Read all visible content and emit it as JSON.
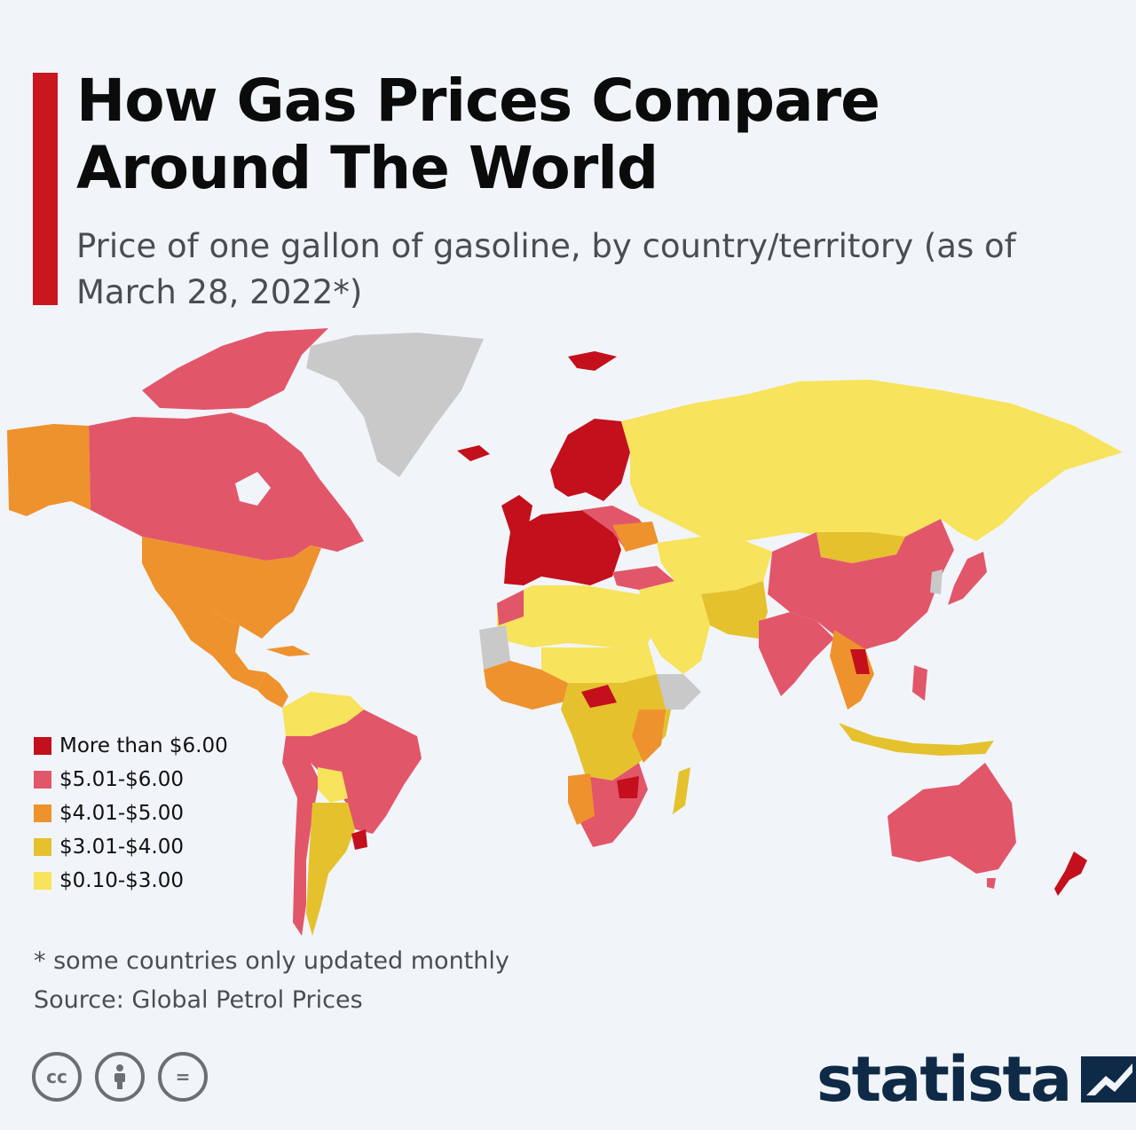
{
  "header": {
    "title": "How Gas Prices Compare Around The World",
    "subtitle": "Price of one gallon of gasoline, by country/territory (as of March 28, 2022*)"
  },
  "colors": {
    "accent_bar": "#c8171e",
    "no_data": "#c9c9c9",
    "background": "#f1f5f9"
  },
  "legend": {
    "items": [
      {
        "label": "More than $6.00",
        "color": "#c40f1c"
      },
      {
        "label": "$5.01-$6.00",
        "color": "#e2566a"
      },
      {
        "label": "$4.01-$5.00",
        "color": "#ee922d"
      },
      {
        "label": "$3.01-$4.00",
        "color": "#e5c12e"
      },
      {
        "label": "$0.10-$3.00",
        "color": "#f7e35c"
      }
    ]
  },
  "map_regions": [
    {
      "region": "Canada",
      "category": "$5.01-$6.00"
    },
    {
      "region": "USA",
      "category": "$4.01-$5.00"
    },
    {
      "region": "Alaska",
      "category": "$4.01-$5.00"
    },
    {
      "region": "Mexico",
      "category": "$4.01-$5.00"
    },
    {
      "region": "Greenland",
      "category": "no data"
    },
    {
      "region": "Brazil",
      "category": "$5.01-$6.00"
    },
    {
      "region": "Argentina",
      "category": "$3.01-$4.00"
    },
    {
      "region": "Uruguay",
      "category": "More than $6.00"
    },
    {
      "region": "Venezuela",
      "category": "$0.10-$3.00"
    },
    {
      "region": "Western Europe",
      "category": "More than $6.00"
    },
    {
      "region": "Iceland",
      "category": "More than $6.00"
    },
    {
      "region": "Scandinavia",
      "category": "More than $6.00"
    },
    {
      "region": "Russia",
      "category": "$0.10-$3.00"
    },
    {
      "region": "China",
      "category": "$5.01-$6.00"
    },
    {
      "region": "India",
      "category": "$5.01-$6.00"
    },
    {
      "region": "Japan",
      "category": "$5.01-$6.00"
    },
    {
      "region": "Mongolia",
      "category": "$3.01-$4.00"
    },
    {
      "region": "Middle East",
      "category": "$0.10-$3.00"
    },
    {
      "region": "North Africa",
      "category": "$0.10-$3.00"
    },
    {
      "region": "Central Africa",
      "category": "$3.01-$4.00"
    },
    {
      "region": "Southern Africa",
      "category": "$5.01-$6.00"
    },
    {
      "region": "Zimbabwe",
      "category": "More than $6.00"
    },
    {
      "region": "Madagascar",
      "category": "$3.01-$4.00"
    },
    {
      "region": "Australia",
      "category": "$5.01-$6.00"
    },
    {
      "region": "New Zealand",
      "category": "More than $6.00"
    },
    {
      "region": "Indonesia",
      "category": "$3.01-$4.00"
    }
  ],
  "footnote": {
    "note": "* some countries only updated monthly",
    "source": "Source: Global Petrol Prices"
  },
  "license_icons": [
    "cc-icon",
    "attribution-icon",
    "no-derivatives-icon"
  ],
  "license_icon_text": {
    "cc": "cc",
    "nd": "="
  },
  "brand": {
    "name": "statista"
  }
}
